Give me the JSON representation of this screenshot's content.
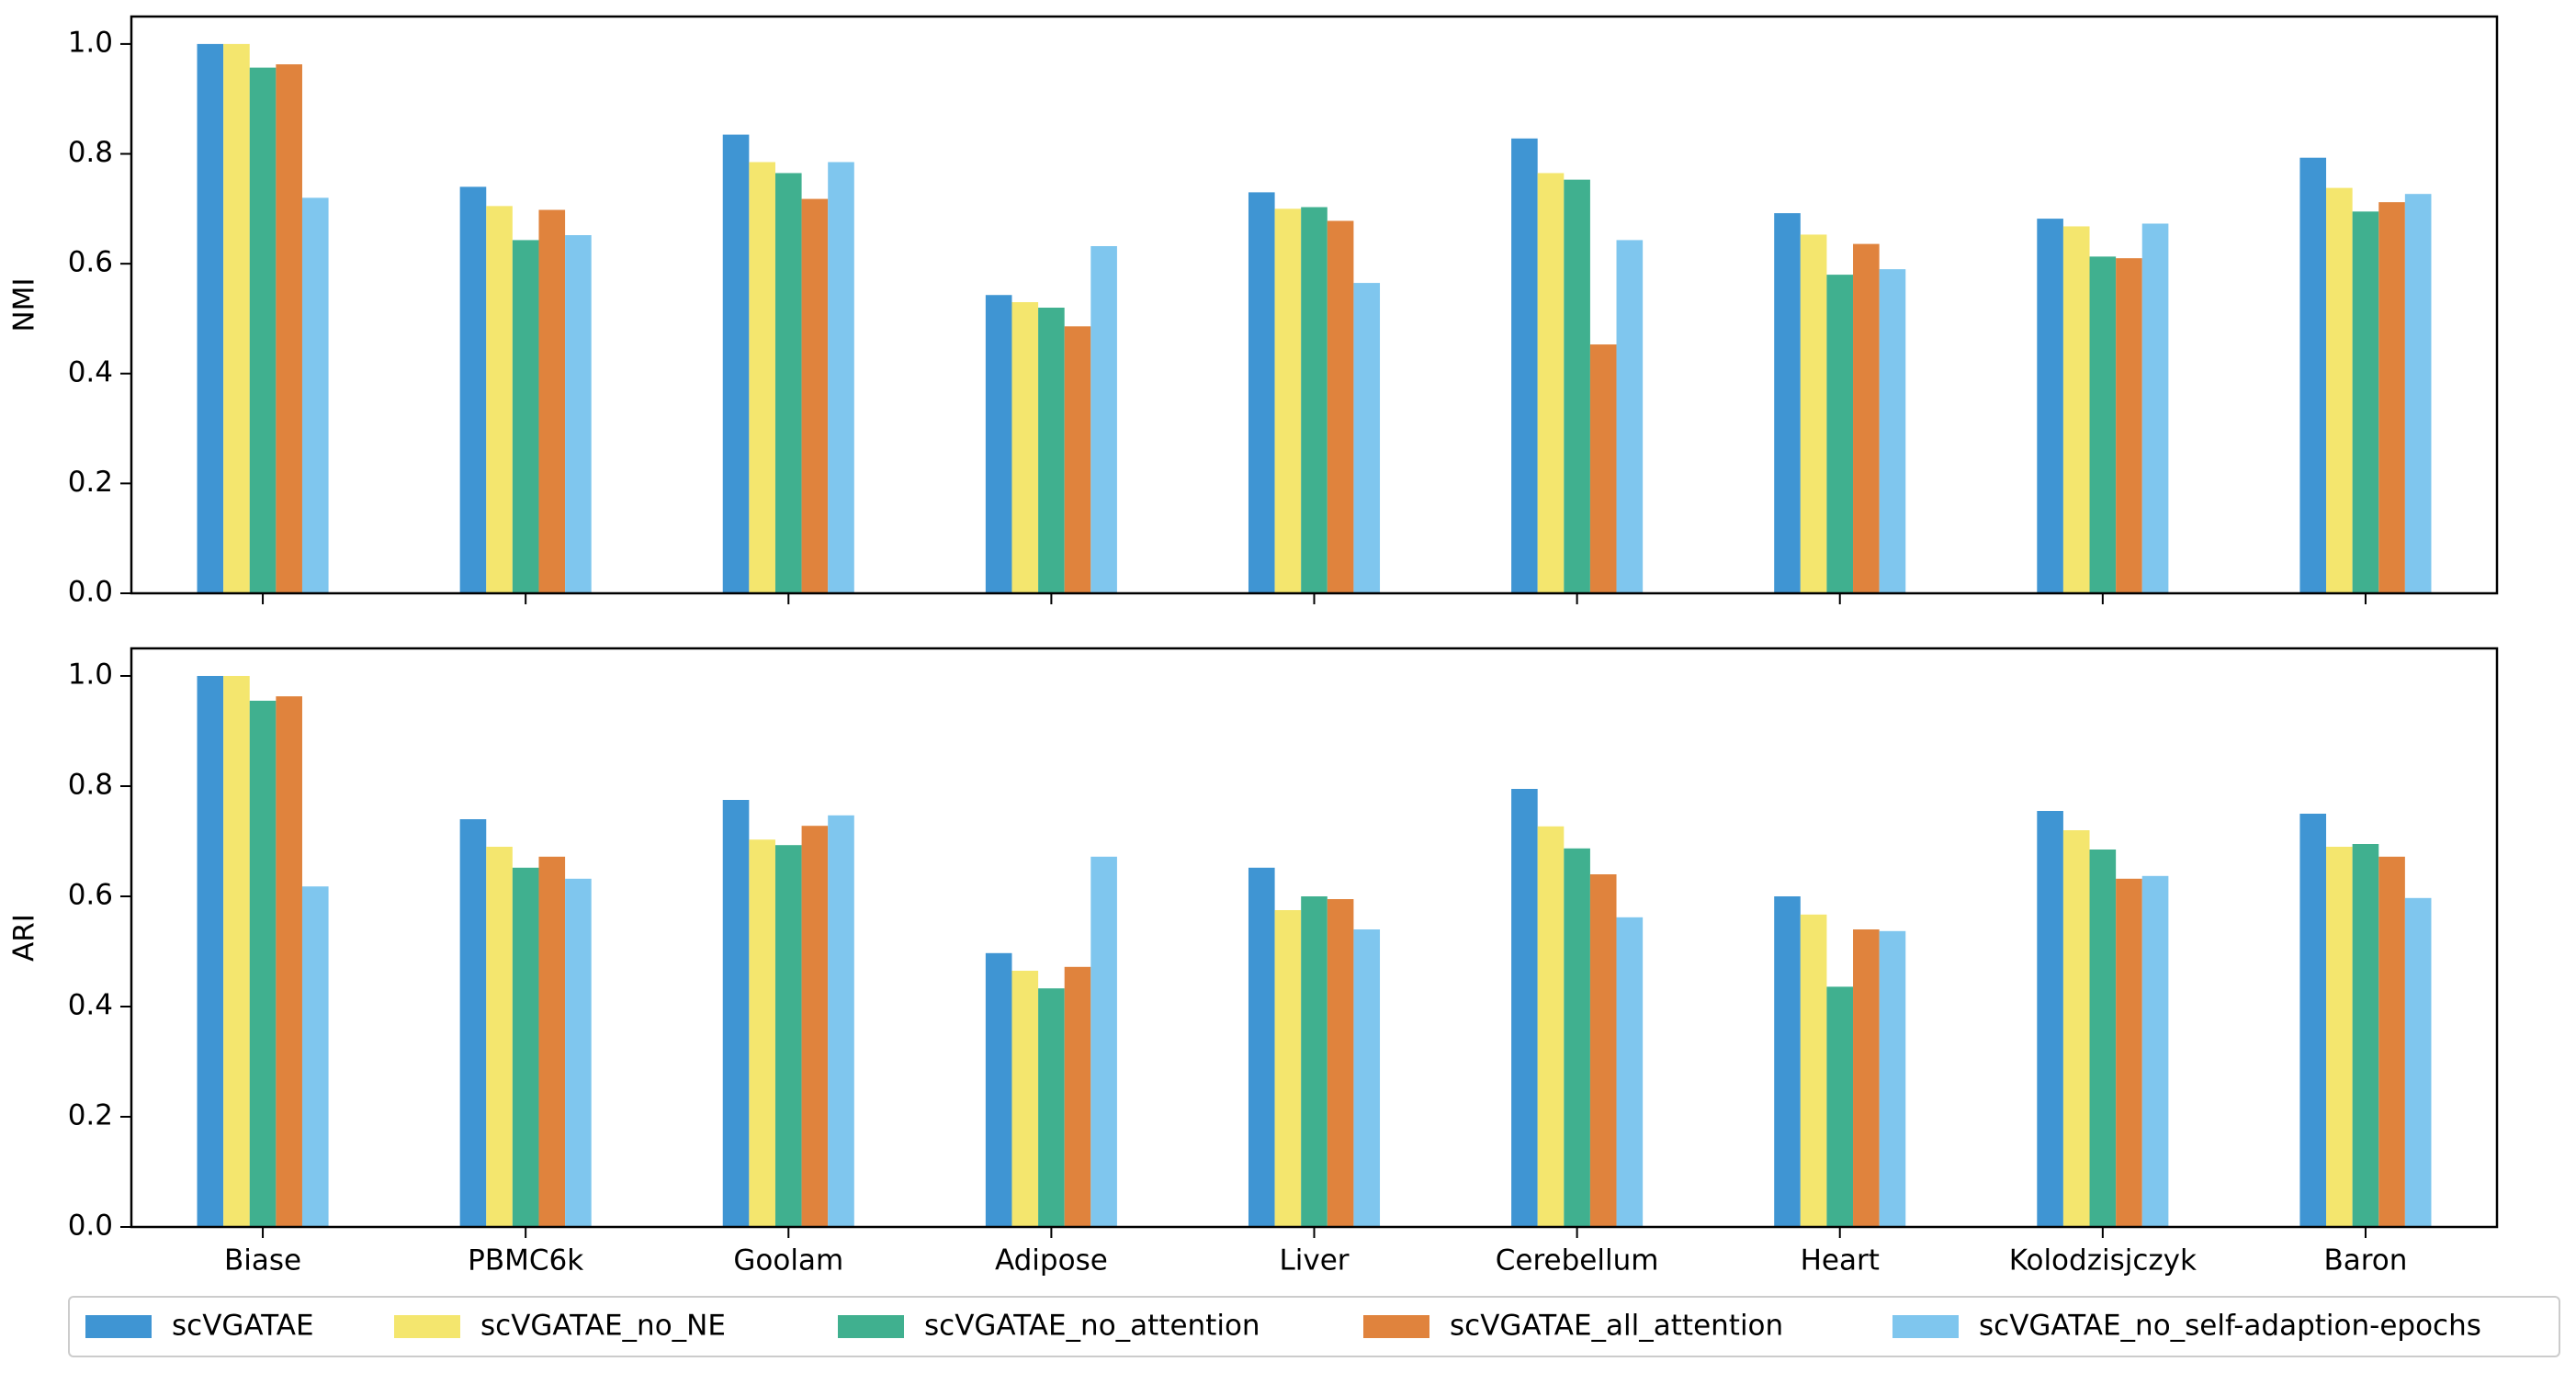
{
  "chart_data": [
    {
      "type": "bar",
      "ylabel": "NMI",
      "ylim": [
        0,
        1.05
      ],
      "yticks": [
        {
          "value": 0,
          "label": "0.0"
        },
        0.2,
        0.4,
        0.6,
        0.8,
        {
          "value": 1,
          "label": "1.0"
        }
      ],
      "series": [
        {
          "name": "scVGATAE",
          "color": "#3f95d3",
          "values": [
            1.0,
            0.74,
            0.835,
            0.543,
            0.73,
            0.828,
            0.692,
            0.682,
            0.793
          ]
        },
        {
          "name": "scVGATAE_no_NE",
          "color": "#f4e66e",
          "values": [
            1.0,
            0.705,
            0.785,
            0.53,
            0.7,
            0.765,
            0.653,
            0.668,
            0.738
          ]
        },
        {
          "name": "scVGATAE_no_attention",
          "color": "#40b08f",
          "values": [
            0.957,
            0.643,
            0.765,
            0.52,
            0.703,
            0.753,
            0.58,
            0.613,
            0.695
          ]
        },
        {
          "name": "scVGATAE_all_attention",
          "color": "#e0833d",
          "values": [
            0.963,
            0.698,
            0.718,
            0.486,
            0.678,
            0.453,
            0.636,
            0.61,
            0.712
          ]
        },
        {
          "name": "scVGATAE_no_self-adaption-epochs",
          "color": "#7fc6ee",
          "values": [
            0.72,
            0.652,
            0.785,
            0.632,
            0.565,
            0.643,
            0.59,
            0.673,
            0.727
          ]
        }
      ]
    },
    {
      "type": "bar",
      "ylabel": "ARI",
      "ylim": [
        0,
        1.05
      ],
      "yticks": [
        {
          "value": 0,
          "label": "0.0"
        },
        0.2,
        0.4,
        0.6,
        0.8,
        {
          "value": 1,
          "label": "1.0"
        }
      ],
      "categories": [
        "Biase",
        "PBMC6k",
        "Goolam",
        "Adipose",
        "Liver",
        "Cerebellum",
        "Heart",
        "Kolodzisjczyk",
        "Baron"
      ],
      "series": [
        {
          "color": "#3f95d3",
          "values": [
            1.0,
            0.74,
            0.775,
            0.497,
            0.652,
            0.795,
            0.6,
            0.755,
            0.75
          ]
        },
        {
          "color": "#f4e66e",
          "values": [
            1.0,
            0.69,
            0.703,
            0.465,
            0.575,
            0.727,
            0.567,
            0.72,
            0.69
          ]
        },
        {
          "color": "#40b08f",
          "values": [
            0.955,
            0.652,
            0.693,
            0.433,
            0.6,
            0.687,
            0.436,
            0.685,
            0.695
          ]
        },
        {
          "color": "#e0833d",
          "values": [
            0.963,
            0.672,
            0.728,
            0.472,
            0.595,
            0.64,
            0.54,
            0.632,
            0.672
          ]
        },
        {
          "color": "#7fc6ee",
          "values": [
            0.618,
            0.632,
            0.747,
            0.672,
            0.54,
            0.562,
            0.537,
            0.637,
            0.597
          ]
        }
      ]
    }
  ]
}
